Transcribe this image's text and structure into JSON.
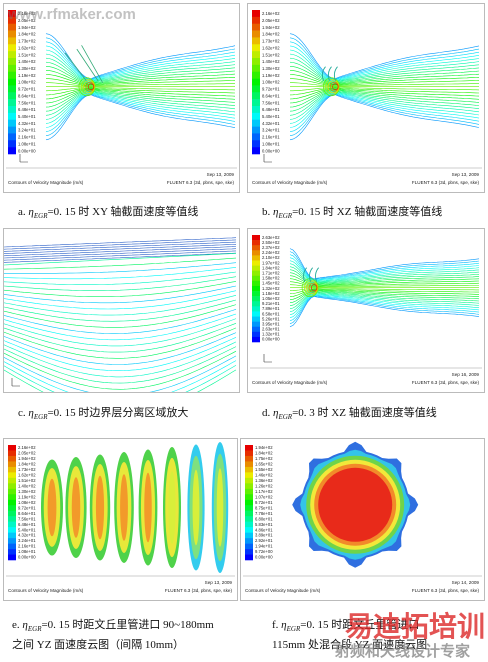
{
  "watermark": {
    "site": "www.rfmaker.com",
    "brand": "易迪拓培训",
    "slogan": "射频和天线设计专家"
  },
  "panels": [
    {
      "footer_left": "Contours of Velocity Magnitude (m/s)",
      "footer_date": "Sep 13, 2009",
      "footer_solver": "FLUENT 6.3 (3d, pbns, spe, ske)",
      "legend_labels": [
        "2.16e+02",
        "2.05e+02",
        "1.94e+02",
        "1.84e+02",
        "1.73e+02",
        "1.62e+02",
        "1.51e+02",
        "1.40e+02",
        "1.30e+02",
        "1.19e+02",
        "1.08e+02",
        "9.72e+01",
        "8.64e+01",
        "7.56e+01",
        "6.48e+01",
        "5.40e+01",
        "4.32e+01",
        "3.24e+01",
        "2.16e+01",
        "1.08e+01",
        "0.00e+00"
      ],
      "caption": {
        "lines": [
          {
            "letter": "a.",
            "eta": "η",
            "sub": "EGR",
            "rest": "=0. 15 时 XY 轴截面速度等值线"
          }
        ]
      }
    },
    {
      "footer_left": "Contours of Velocity Magnitude (m/s)",
      "footer_date": "Sep 13, 2009",
      "footer_solver": "FLUENT 6.3 (3d, pbns, spe, ske)",
      "legend_labels": [
        "2.16e+02",
        "2.05e+02",
        "1.94e+02",
        "1.84e+02",
        "1.73e+02",
        "1.62e+02",
        "1.51e+02",
        "1.40e+02",
        "1.30e+02",
        "1.19e+02",
        "1.08e+02",
        "9.72e+01",
        "8.64e+01",
        "7.56e+01",
        "6.48e+01",
        "5.40e+01",
        "4.32e+01",
        "3.24e+01",
        "2.16e+01",
        "1.08e+01",
        "0.00e+00"
      ],
      "caption": {
        "lines": [
          {
            "letter": "b.",
            "eta": "η",
            "sub": "EGR",
            "rest": "=0. 15 时 XZ 轴截面速度等值线"
          }
        ]
      }
    },
    {
      "caption": {
        "lines": [
          {
            "letter": "c.",
            "eta": "η",
            "sub": "EGR",
            "rest": "=0. 15 时边界层分离区域放大"
          }
        ]
      }
    },
    {
      "footer_left": "Contours of Velocity Magnitude (m/s)",
      "footer_date": "Sep 16, 2009",
      "footer_solver": "FLUENT 6.3 (3d, pbns, spe, ske)",
      "legend_labels": [
        "2.63e+02",
        "2.50e+02",
        "2.37e+02",
        "2.24e+02",
        "2.10e+02",
        "1.97e+02",
        "1.84e+02",
        "1.71e+02",
        "1.58e+02",
        "1.45e+02",
        "1.32e+02",
        "1.18e+02",
        "1.05e+02",
        "9.21e+01",
        "7.89e+01",
        "6.58e+01",
        "5.26e+01",
        "3.95e+01",
        "2.63e+01",
        "1.32e+01",
        "0.00e+00"
      ],
      "caption": {
        "lines": [
          {
            "letter": "d.",
            "eta": "η",
            "sub": "EGR",
            "rest": "=0. 3 时 XZ 轴截面速度等值线"
          }
        ]
      }
    },
    {
      "footer_left": "Contours of Velocity Magnitude (m/s)",
      "footer_date": "Sep 13, 2009",
      "footer_solver": "FLUENT 6.3 (3d, pbns, spe, ske)",
      "legend_labels": [
        "2.16e+02",
        "2.05e+02",
        "1.94e+02",
        "1.84e+02",
        "1.73e+02",
        "1.62e+02",
        "1.51e+02",
        "1.40e+02",
        "1.30e+02",
        "1.19e+02",
        "1.08e+02",
        "9.72e+01",
        "8.64e+01",
        "7.56e+01",
        "6.48e+01",
        "5.40e+01",
        "4.32e+01",
        "3.24e+01",
        "2.16e+01",
        "1.08e+01",
        "0.00e+00"
      ],
      "caption": {
        "lines": [
          {
            "letter": "e.",
            "eta": "η",
            "sub": "EGR",
            "rest": "=0. 15 时距文丘里管进口 90~180mm"
          },
          {
            "rest": "之间 YZ 面速度云图（间隔 10mm）"
          }
        ]
      }
    },
    {
      "footer_left": "Contours of Velocity Magnitude (m/s)",
      "footer_date": "Sep 14, 2009",
      "footer_solver": "FLUENT 6.3 (3d, pbns, spe, ske)",
      "legend_labels": [
        "1.94e+02",
        "1.84e+02",
        "1.75e+02",
        "1.65e+02",
        "1.55e+02",
        "1.46e+02",
        "1.36e+02",
        "1.26e+02",
        "1.17e+02",
        "1.07e+02",
        "9.72e+01",
        "8.75e+01",
        "7.78e+01",
        "6.80e+01",
        "5.83e+01",
        "4.86e+01",
        "3.89e+01",
        "2.92e+01",
        "1.94e+01",
        "9.72e+00",
        "0.00e+00"
      ],
      "caption": {
        "lines": [
          {
            "letter": "f.",
            "eta": "η",
            "sub": "EGR",
            "rest": "=0. 15 时距文丘里管进口"
          },
          {
            "rest": "115mm 处混合段 YZ 面速度云图"
          }
        ]
      }
    }
  ]
}
